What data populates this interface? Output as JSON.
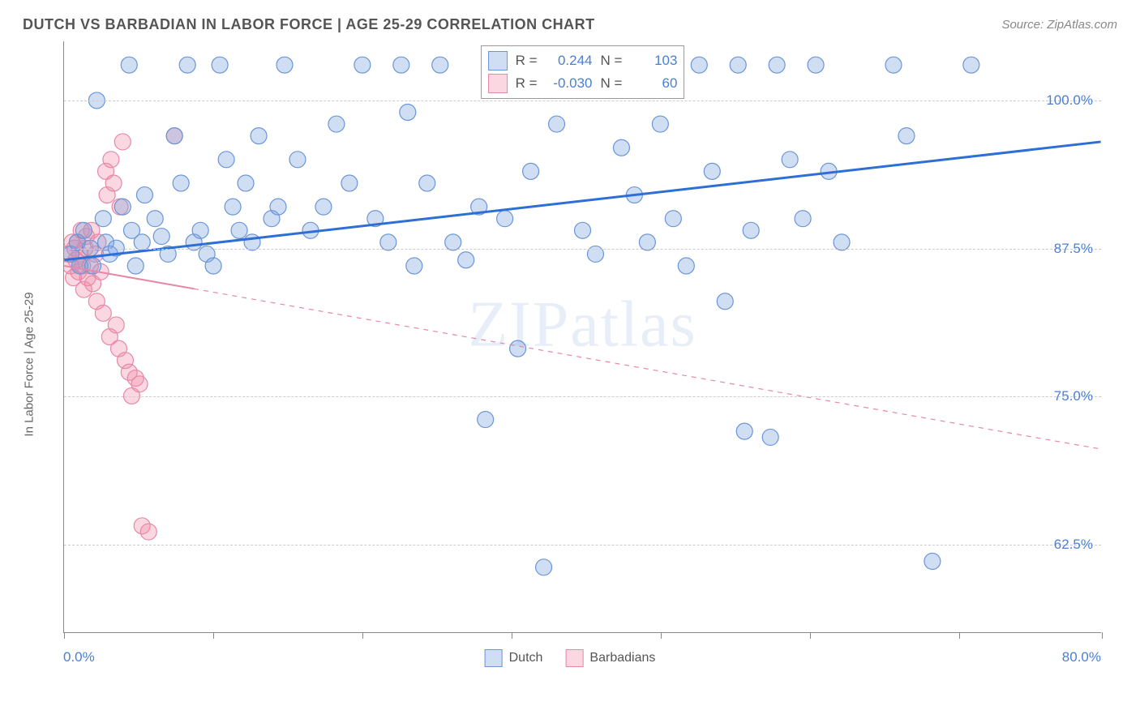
{
  "title": "DUTCH VS BARBADIAN IN LABOR FORCE | AGE 25-29 CORRELATION CHART",
  "source": "Source: ZipAtlas.com",
  "watermark": "ZIPatlas",
  "ylabel": "In Labor Force | Age 25-29",
  "chart": {
    "type": "scatter",
    "xlim": [
      0,
      80
    ],
    "ylim": [
      55,
      105
    ],
    "xtick_positions": [
      0,
      11.5,
      23,
      34.5,
      46,
      57.5,
      69,
      80
    ],
    "xtick_labels": {
      "first": "0.0%",
      "last": "80.0%"
    },
    "ytick_values": [
      62.5,
      75.0,
      87.5,
      100.0
    ],
    "ytick_labels": [
      "62.5%",
      "75.0%",
      "87.5%",
      "100.0%"
    ],
    "grid_color": "#cccccc",
    "axis_color": "#888888",
    "background_color": "#ffffff",
    "series": {
      "dutch": {
        "label": "Dutch",
        "color_fill": "rgba(120, 160, 220, 0.35)",
        "color_stroke": "#6a95d6",
        "marker_radius": 10,
        "trend_color": "#2e6fd6",
        "trend_width": 3,
        "trend": {
          "x1": 0,
          "y1": 86.5,
          "x2": 80,
          "y2": 96.5
        },
        "R": "0.244",
        "N": "103",
        "points": [
          [
            0.5,
            87
          ],
          [
            1,
            88
          ],
          [
            1.2,
            86
          ],
          [
            1.5,
            89
          ],
          [
            2,
            87.5
          ],
          [
            2.2,
            86
          ],
          [
            2.5,
            100
          ],
          [
            3,
            90
          ],
          [
            3.2,
            88
          ],
          [
            3.5,
            87
          ],
          [
            4,
            87.5
          ],
          [
            4.5,
            91
          ],
          [
            5,
            103
          ],
          [
            5.2,
            89
          ],
          [
            5.5,
            86
          ],
          [
            6,
            88
          ],
          [
            6.2,
            92
          ],
          [
            7,
            90
          ],
          [
            7.5,
            88.5
          ],
          [
            8,
            87
          ],
          [
            8.5,
            97
          ],
          [
            9,
            93
          ],
          [
            9.5,
            103
          ],
          [
            10,
            88
          ],
          [
            10.5,
            89
          ],
          [
            11,
            87
          ],
          [
            11.5,
            86
          ],
          [
            12,
            103
          ],
          [
            12.5,
            95
          ],
          [
            13,
            91
          ],
          [
            13.5,
            89
          ],
          [
            14,
            93
          ],
          [
            14.5,
            88
          ],
          [
            15,
            97
          ],
          [
            16,
            90
          ],
          [
            16.5,
            91
          ],
          [
            17,
            103
          ],
          [
            18,
            95
          ],
          [
            19,
            89
          ],
          [
            20,
            91
          ],
          [
            21,
            98
          ],
          [
            22,
            93
          ],
          [
            23,
            103
          ],
          [
            24,
            90
          ],
          [
            25,
            88
          ],
          [
            26,
            103
          ],
          [
            26.5,
            99
          ],
          [
            27,
            86
          ],
          [
            28,
            93
          ],
          [
            29,
            103
          ],
          [
            30,
            88
          ],
          [
            31,
            86.5
          ],
          [
            32,
            91
          ],
          [
            32.5,
            73
          ],
          [
            33,
            103
          ],
          [
            34,
            90
          ],
          [
            35,
            79
          ],
          [
            35.5,
            103
          ],
          [
            36,
            94
          ],
          [
            37,
            60.5
          ],
          [
            38,
            98
          ],
          [
            39,
            103
          ],
          [
            40,
            89
          ],
          [
            41,
            87
          ],
          [
            42,
            103
          ],
          [
            43,
            96
          ],
          [
            44,
            92
          ],
          [
            45,
            88
          ],
          [
            46,
            98
          ],
          [
            47,
            90
          ],
          [
            48,
            86
          ],
          [
            49,
            103
          ],
          [
            50,
            94
          ],
          [
            51,
            83
          ],
          [
            52,
            103
          ],
          [
            52.5,
            72
          ],
          [
            53,
            89
          ],
          [
            54.5,
            71.5
          ],
          [
            55,
            103
          ],
          [
            56,
            95
          ],
          [
            57,
            90
          ],
          [
            58,
            103
          ],
          [
            59,
            94
          ],
          [
            60,
            88
          ],
          [
            64,
            103
          ],
          [
            65,
            97
          ],
          [
            67,
            61
          ],
          [
            70,
            103
          ]
        ]
      },
      "barbadians": {
        "label": "Barbadians",
        "color_fill": "rgba(240, 140, 170, 0.35)",
        "color_stroke": "#e688a8",
        "marker_radius": 10,
        "trend_color": "#e688a8",
        "trend_width": 2,
        "trend": {
          "x1": 0,
          "y1": 86,
          "x2": 80,
          "y2": 70.5
        },
        "trend_solid_until_x": 10,
        "R": "-0.030",
        "N": "60",
        "points": [
          [
            0.3,
            87
          ],
          [
            0.5,
            86
          ],
          [
            0.6,
            88
          ],
          [
            0.7,
            85
          ],
          [
            0.8,
            87.5
          ],
          [
            0.9,
            86.5
          ],
          [
            1,
            88
          ],
          [
            1.1,
            85.5
          ],
          [
            1.2,
            87
          ],
          [
            1.3,
            89
          ],
          [
            1.4,
            86
          ],
          [
            1.5,
            84
          ],
          [
            1.6,
            87.5
          ],
          [
            1.7,
            88.5
          ],
          [
            1.8,
            85
          ],
          [
            2,
            86
          ],
          [
            2.1,
            89
          ],
          [
            2.2,
            84.5
          ],
          [
            2.4,
            87
          ],
          [
            2.5,
            83
          ],
          [
            2.6,
            88
          ],
          [
            2.8,
            85.5
          ],
          [
            3,
            82
          ],
          [
            3.2,
            94
          ],
          [
            3.3,
            92
          ],
          [
            3.5,
            80
          ],
          [
            3.6,
            95
          ],
          [
            3.8,
            93
          ],
          [
            4,
            81
          ],
          [
            4.2,
            79
          ],
          [
            4.3,
            91
          ],
          [
            4.5,
            96.5
          ],
          [
            4.7,
            78
          ],
          [
            5,
            77
          ],
          [
            5.2,
            75
          ],
          [
            5.5,
            76.5
          ],
          [
            5.8,
            76
          ],
          [
            6,
            64
          ],
          [
            6.5,
            63.5
          ],
          [
            8.5,
            97
          ]
        ]
      }
    }
  },
  "legend_stats": {
    "R_label": "R =",
    "N_label": "N ="
  },
  "legend_bottom": {
    "dutch": "Dutch",
    "barbadians": "Barbadians"
  }
}
